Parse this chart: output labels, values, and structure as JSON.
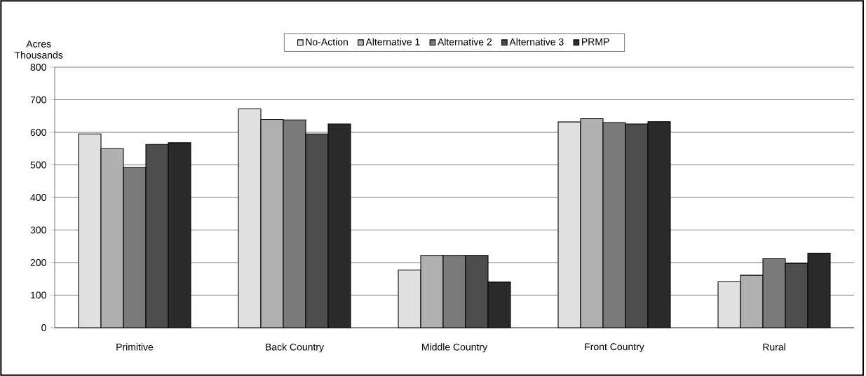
{
  "chart_data": {
    "type": "bar",
    "ylabel": "Acres Thousands",
    "categories": [
      "Primitive",
      "Back Country",
      "Middle Country",
      "Front Country",
      "Rural"
    ],
    "series": [
      {
        "name": "No-Action",
        "color": "#e0e0e0",
        "values": [
          595,
          672,
          177,
          632,
          141
        ]
      },
      {
        "name": "Alternative 1",
        "color": "#b0b0b0",
        "values": [
          550,
          640,
          222,
          642,
          161
        ]
      },
      {
        "name": "Alternative 2",
        "color": "#7a7a7a",
        "values": [
          492,
          638,
          222,
          630,
          212
        ]
      },
      {
        "name": "Alternative 3",
        "color": "#4d4d4d",
        "values": [
          563,
          595,
          222,
          626,
          197
        ]
      },
      {
        "name": "PRMP",
        "color": "#2a2a2a",
        "values": [
          568,
          626,
          140,
          633,
          229
        ]
      }
    ],
    "ylim": [
      0,
      800
    ],
    "yticks": [
      0,
      100,
      200,
      300,
      400,
      500,
      600,
      700,
      800
    ],
    "grid": "y",
    "legend": "top"
  }
}
